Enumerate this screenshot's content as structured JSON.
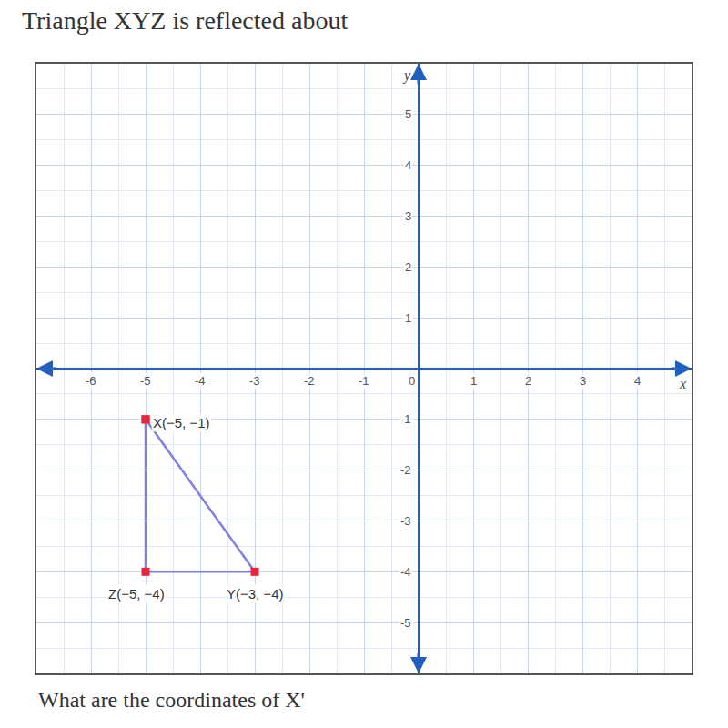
{
  "chart_data": {
    "type": "scatter",
    "title": "Triangle XYZ is reflected about",
    "subtitle": "What are the coordinates of X'",
    "xlabel": "x",
    "ylabel": "y",
    "x": [
      -5,
      -3,
      -5,
      -5
    ],
    "values": [
      -1,
      -4,
      -4,
      -1
    ],
    "color": "#7f7fe6",
    "marker": "square",
    "marker_color": "#e8253d",
    "annotations": [
      {
        "text": "X(−5, −1)",
        "x": -5,
        "y": -1
      },
      {
        "text": "Y(−3, −4)",
        "x": -3,
        "y": -4
      },
      {
        "text": "Z(−5, −4)",
        "x": -5,
        "y": -4
      }
    ],
    "xlim": [
      -7,
      5
    ],
    "ylim": [
      -6,
      6
    ],
    "xticks": [
      -6,
      -5,
      -4,
      -3,
      -2,
      -1,
      0,
      1,
      2,
      3,
      4
    ],
    "yticks": [
      -5,
      -4,
      -3,
      -2,
      -1,
      1,
      2,
      3,
      4,
      5
    ],
    "grid": true
  }
}
